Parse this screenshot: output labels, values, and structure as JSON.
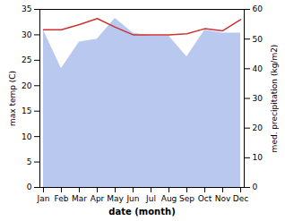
{
  "chart_data": {
    "type": "line",
    "xlabel": "date (month)",
    "ylabel": "max temp (C)",
    "y2label": "med. precipitation (kg/m2)",
    "categories": [
      "Jan",
      "Feb",
      "Mar",
      "Apr",
      "May",
      "Jun",
      "Jul",
      "Aug",
      "Sep",
      "Oct",
      "Nov",
      "Dec"
    ],
    "series": [
      {
        "type": "area",
        "axis": "y2",
        "color": "#b8c8ee",
        "values": [
          53,
          40,
          49,
          50,
          57,
          52,
          51,
          51,
          44,
          53,
          52,
          52
        ]
      },
      {
        "type": "line",
        "color": "#cc3333",
        "values": [
          31.0,
          31.0,
          32.0,
          33.2,
          31.5,
          30.0,
          30.0,
          30.0,
          30.2,
          31.2,
          30.8,
          33.0
        ]
      }
    ],
    "ylim": [
      0,
      35
    ],
    "yticks": [
      0,
      5,
      10,
      15,
      20,
      25,
      30,
      35
    ],
    "y2lim": [
      0,
      60
    ],
    "y2ticks": [
      0,
      10,
      20,
      30,
      40,
      50,
      60
    ]
  }
}
